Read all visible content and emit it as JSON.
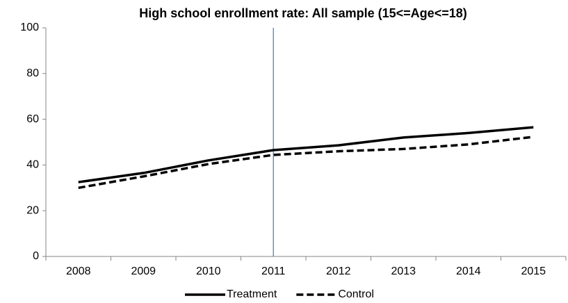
{
  "chart_data": {
    "type": "line",
    "title": "High school enrollment rate: All sample (15<=Age<=18)",
    "categories": [
      "2008",
      "2009",
      "2010",
      "2011",
      "2012",
      "2013",
      "2014",
      "2015"
    ],
    "series": [
      {
        "name": "Treatment",
        "color": "#000000",
        "line_style": "solid",
        "values": [
          32.5,
          36.5,
          42,
          46.5,
          48.6,
          52,
          54,
          56.5
        ]
      },
      {
        "name": "Control",
        "color": "#000000",
        "line_style": "dashed",
        "values": [
          30,
          35,
          40.4,
          44.4,
          46,
          47,
          49,
          52.3
        ]
      }
    ],
    "ylim": [
      0,
      100
    ],
    "yticks": [
      0,
      20,
      40,
      60,
      80,
      100
    ],
    "grid": false,
    "vertical_line": {
      "at": "2011",
      "color": "#4f81bd"
    },
    "legend": "bottom"
  }
}
